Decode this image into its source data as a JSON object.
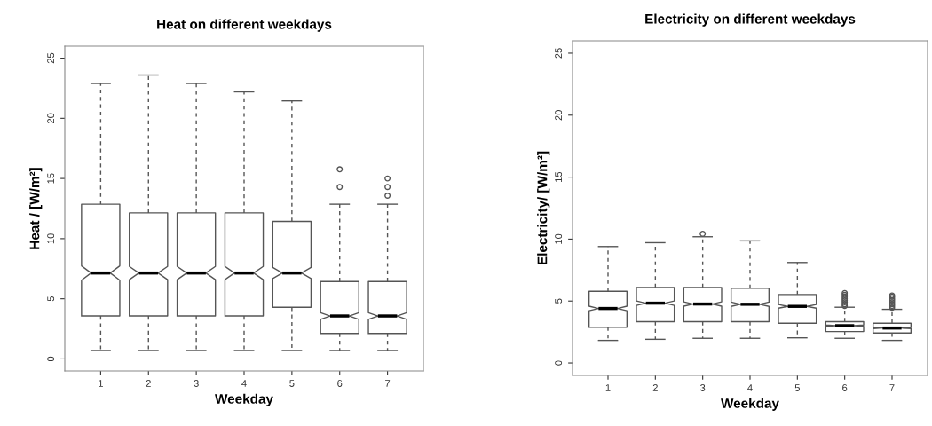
{
  "chart_data": [
    {
      "type": "box",
      "title": "Heat on different weekdays",
      "xlabel": "Weekday",
      "ylabel": "Heat / [W/m²]",
      "categories": [
        "1",
        "2",
        "3",
        "4",
        "5",
        "6",
        "7"
      ],
      "ylim": [
        -1,
        26
      ],
      "yticks": [
        0,
        5,
        10,
        15,
        20,
        25
      ],
      "grid": false,
      "legend": false,
      "boxes": [
        {
          "low": 0.7,
          "q1": 3.57,
          "median": 7.14,
          "q3": 12.86,
          "high": 22.9
        },
        {
          "low": 0.7,
          "q1": 3.57,
          "median": 7.14,
          "q3": 12.14,
          "high": 23.6
        },
        {
          "low": 0.7,
          "q1": 3.57,
          "median": 7.14,
          "q3": 12.14,
          "high": 22.9
        },
        {
          "low": 0.7,
          "q1": 3.57,
          "median": 7.14,
          "q3": 12.14,
          "high": 22.2
        },
        {
          "low": 0.7,
          "q1": 4.29,
          "median": 7.14,
          "q3": 11.43,
          "high": 21.45
        },
        {
          "low": 0.7,
          "q1": 2.12,
          "median": 3.57,
          "q3": 6.43,
          "high": 12.86,
          "outliers": [
            15.76,
            14.29
          ]
        },
        {
          "low": 0.7,
          "q1": 2.12,
          "median": 3.57,
          "q3": 6.43,
          "high": 12.86,
          "outliers": [
            15.0,
            14.29,
            13.57
          ]
        }
      ]
    },
    {
      "type": "box",
      "title": "Electricity on different weekdays",
      "xlabel": "Weekday",
      "ylabel": "Electricity/ [W/m²]",
      "categories": [
        "1",
        "2",
        "3",
        "4",
        "5",
        "6",
        "7"
      ],
      "ylim": [
        -1,
        26
      ],
      "yticks": [
        0,
        5,
        10,
        15,
        20,
        25
      ],
      "grid": false,
      "legend": false,
      "boxes": [
        {
          "low": 1.82,
          "q1": 2.89,
          "median": 4.4,
          "q3": 5.79,
          "high": 9.4
        },
        {
          "low": 1.91,
          "q1": 3.33,
          "median": 4.83,
          "q3": 6.1,
          "high": 9.71
        },
        {
          "low": 1.99,
          "q1": 3.33,
          "median": 4.76,
          "q3": 6.1,
          "high": 10.19,
          "outliers": [
            10.43
          ]
        },
        {
          "low": 1.99,
          "q1": 3.33,
          "median": 4.74,
          "q3": 6.03,
          "high": 9.86
        },
        {
          "low": 2.03,
          "q1": 3.21,
          "median": 4.57,
          "q3": 5.53,
          "high": 8.11
        },
        {
          "low": 1.99,
          "q1": 2.54,
          "median": 3.01,
          "q3": 3.33,
          "high": 4.5,
          "outliers": [
            4.6,
            4.75,
            4.9,
            5.05,
            5.2,
            5.35,
            5.5,
            5.65
          ]
        },
        {
          "low": 1.82,
          "q1": 2.42,
          "median": 2.82,
          "q3": 3.21,
          "high": 4.33,
          "outliers": [
            4.45,
            4.6,
            4.75,
            4.9,
            5.05,
            5.2,
            5.35,
            5.45
          ]
        }
      ]
    }
  ]
}
